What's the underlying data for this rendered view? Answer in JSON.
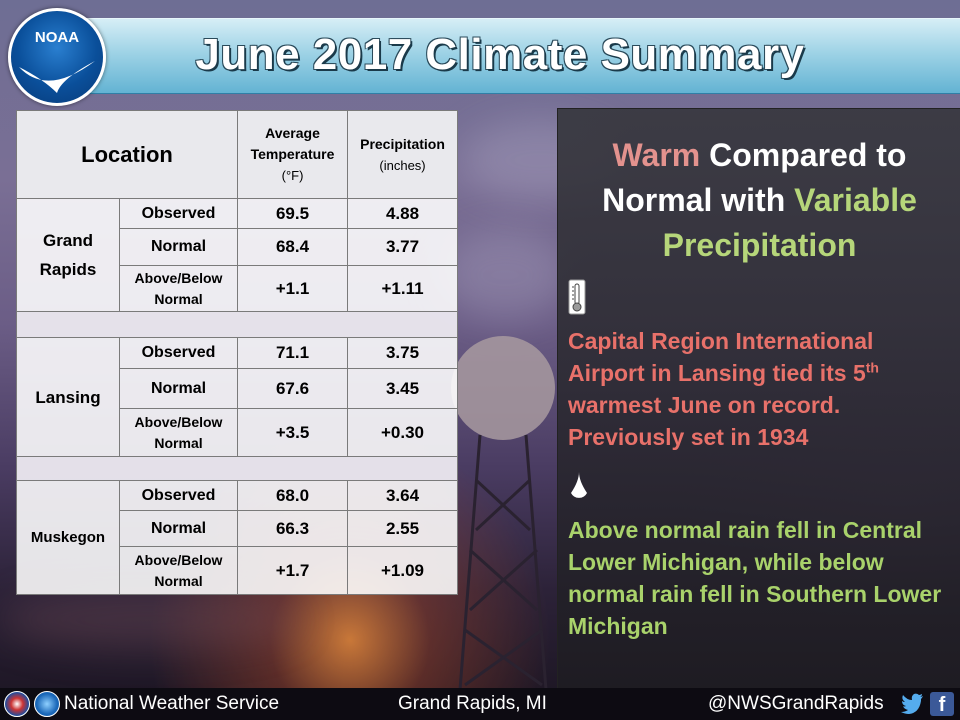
{
  "header": {
    "title": "June 2017 Climate Summary",
    "logo_text": "NOAA"
  },
  "table": {
    "headers": {
      "location": "Location",
      "avg_temp": "Average Temperature",
      "avg_temp_unit": "(°F)",
      "precip": "Precipitation",
      "precip_unit": "(inches)"
    },
    "sites": [
      {
        "name_line1": "Grand",
        "name_line2": "Rapids",
        "rows": [
          {
            "label": "Observed",
            "temp": "69.5",
            "precip": "4.88"
          },
          {
            "label": "Normal",
            "temp": "68.4",
            "precip": "3.77"
          },
          {
            "label_line1": "Above/Below",
            "label_line2": "Normal",
            "temp": "+1.1",
            "precip": "+1.11"
          }
        ]
      },
      {
        "name_line1": "Lansing",
        "rows": [
          {
            "label": "Observed",
            "temp": "71.1",
            "precip": "3.75"
          },
          {
            "label": "Normal",
            "temp": "67.6",
            "precip": "3.45"
          },
          {
            "label_line1": "Above/Below",
            "label_line2": "Normal",
            "temp": "+3.5",
            "precip": "+0.30"
          }
        ]
      },
      {
        "name_line1": "Muskegon",
        "rows": [
          {
            "label": "Observed",
            "temp": "68.0",
            "precip": "3.64"
          },
          {
            "label": "Normal",
            "temp": "66.3",
            "precip": "2.55"
          },
          {
            "label_line1": "Above/Below",
            "label_line2": "Normal",
            "temp": "+1.7",
            "precip": "+1.09"
          }
        ]
      }
    ]
  },
  "panel": {
    "headline": {
      "warm": "Warm",
      "compared": "Compared to",
      "normal_with": "Normal with",
      "variable": "Variable",
      "precipitation": "Precipitation"
    },
    "statement_1": {
      "text_before": "Capital Region International Airport in Lansing tied its 5",
      "ordinal": "th",
      "text_after": " warmest June on record. Previously set in 1934"
    },
    "statement_2": "Above normal rain fell in Central Lower Michigan, while below normal rain fell in Southern Lower Michigan",
    "icons": [
      "thermometer-icon",
      "raindrop-icon"
    ],
    "colors": {
      "warm": "#e3928e",
      "variable_precip": "#b6d67a",
      "statement_1": "#e8716a",
      "statement_2": "#a9d26b"
    }
  },
  "footer": {
    "organization": "National Weather Service",
    "office": "Grand Rapids, MI",
    "handle": "@NWSGrandRapids",
    "facebook_glyph": "f"
  },
  "colors": {
    "positive_temp": "#c0141b",
    "positive_precip": "#2e7d1e",
    "header_blue": "#63b3d3"
  }
}
